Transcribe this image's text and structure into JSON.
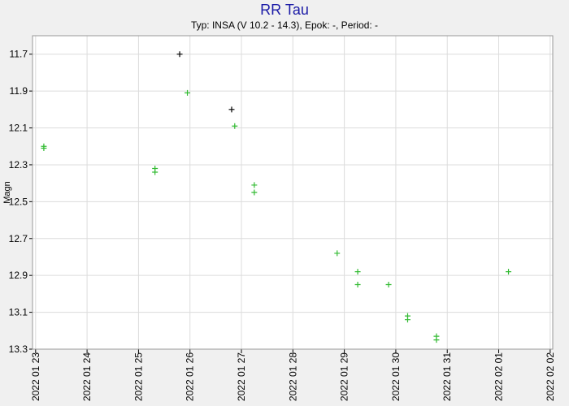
{
  "chart_data": {
    "type": "scatter",
    "title": "RR Tau",
    "subtitle": "Typ: INSA (V 10.2 - 14.3), Epok: -, Period: -",
    "y_label": "Magn",
    "y_inverted": true,
    "grid": true,
    "marker": "+",
    "xlim": [
      22.94,
      33.05
    ],
    "ylim": [
      11.6,
      13.3
    ],
    "xticks": [
      {
        "value": 23,
        "label": "2022 01 23"
      },
      {
        "value": 24,
        "label": "2022 01 24"
      },
      {
        "value": 25,
        "label": "2022 01 25"
      },
      {
        "value": 26,
        "label": "2022 01 26"
      },
      {
        "value": 27,
        "label": "2022 01 27"
      },
      {
        "value": 28,
        "label": "2022 01 28"
      },
      {
        "value": 29,
        "label": "2022 01 29"
      },
      {
        "value": 30,
        "label": "2022 01 30"
      },
      {
        "value": 31,
        "label": "2022 01 31"
      },
      {
        "value": 32,
        "label": "2022 02 01"
      },
      {
        "value": 33,
        "label": "2022 02 02"
      }
    ],
    "yticks": [
      11.7,
      11.9,
      12.1,
      12.3,
      12.5,
      12.7,
      12.9,
      13.1,
      13.3
    ],
    "series": [
      {
        "color": "#33bb33",
        "x": [
          23.16,
          23.16,
          25.32,
          25.32,
          25.95,
          26.87,
          27.25,
          27.25,
          28.86,
          29.26,
          29.26,
          29.86,
          30.23,
          30.23,
          30.79,
          30.79,
          32.19
        ],
        "values": [
          12.2,
          12.21,
          12.32,
          12.34,
          11.91,
          12.09,
          12.41,
          12.45,
          12.78,
          12.88,
          12.95,
          12.95,
          13.12,
          13.14,
          13.23,
          13.25,
          12.88
        ]
      },
      {
        "color": "#000000",
        "x": [
          25.8,
          26.81
        ],
        "values": [
          11.7,
          12.0
        ]
      }
    ]
  }
}
